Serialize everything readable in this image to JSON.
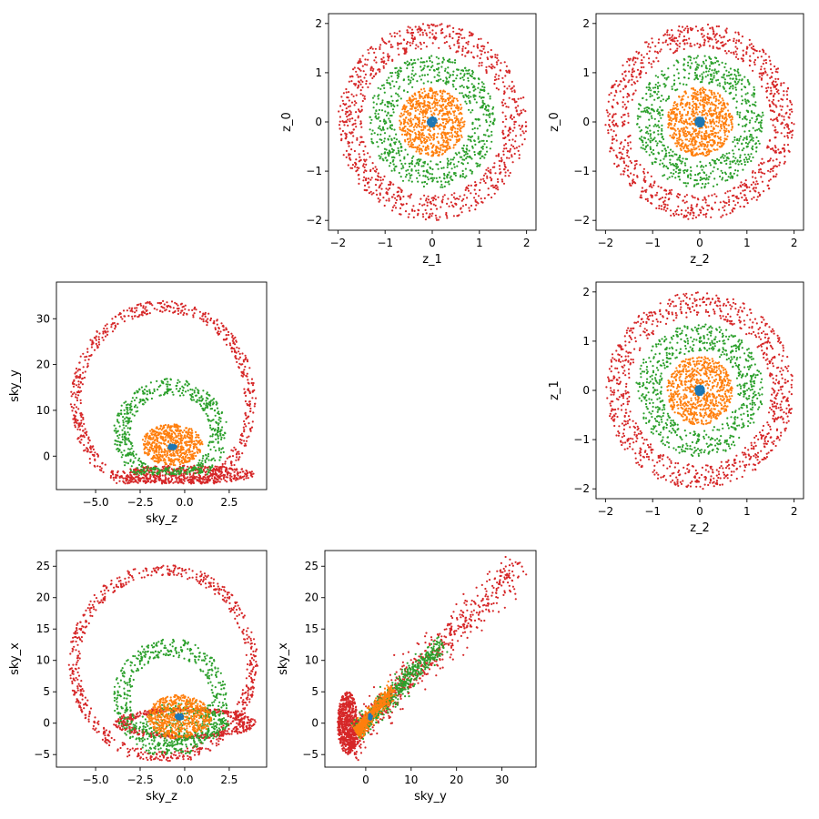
{
  "chart_data": [
    {
      "id": "z1_z0",
      "type": "scatter",
      "xlabel": "z_1",
      "ylabel": "z_0",
      "xlim": [
        -2.2,
        2.2
      ],
      "ylim": [
        -2.2,
        2.2
      ],
      "xticks": [
        -2,
        -1,
        0,
        1,
        2
      ],
      "yticks": [
        -2,
        -1,
        0,
        1,
        2
      ],
      "xticklabels": [
        "−2",
        "−1",
        "0",
        "1",
        "2"
      ],
      "yticklabels": [
        "−2",
        "−1",
        "0",
        "1",
        "2"
      ],
      "series": [
        {
          "color": "#d62728",
          "shape": "annulus",
          "cx": 0,
          "cy": 0,
          "r_inner": 1.5,
          "r_outer": 2.0,
          "count": 900
        },
        {
          "color": "#2ca02c",
          "shape": "annulus",
          "cx": 0,
          "cy": 0,
          "r_inner": 0.8,
          "r_outer": 1.35,
          "count": 700
        },
        {
          "color": "#ff7f0e",
          "shape": "annulus",
          "cx": 0,
          "cy": 0,
          "r_inner": 0.1,
          "r_outer": 0.7,
          "count": 700
        },
        {
          "color": "#1f77b4",
          "shape": "annulus",
          "cx": 0,
          "cy": 0,
          "r_inner": 0.0,
          "r_outer": 0.1,
          "count": 120
        }
      ]
    },
    {
      "id": "z2_z0",
      "type": "scatter",
      "xlabel": "z_2",
      "ylabel": "z_0",
      "xlim": [
        -2.2,
        2.2
      ],
      "ylim": [
        -2.2,
        2.2
      ],
      "xticks": [
        -2,
        -1,
        0,
        1,
        2
      ],
      "yticks": [
        -2,
        -1,
        0,
        1,
        2
      ],
      "xticklabels": [
        "−2",
        "−1",
        "0",
        "1",
        "2"
      ],
      "yticklabels": [
        "−2",
        "−1",
        "0",
        "1",
        "2"
      ],
      "series": [
        {
          "color": "#d62728",
          "shape": "annulus",
          "cx": 0,
          "cy": 0,
          "r_inner": 1.5,
          "r_outer": 2.0,
          "count": 900
        },
        {
          "color": "#2ca02c",
          "shape": "annulus",
          "cx": 0,
          "cy": 0,
          "r_inner": 0.8,
          "r_outer": 1.35,
          "count": 700
        },
        {
          "color": "#ff7f0e",
          "shape": "annulus",
          "cx": 0,
          "cy": 0,
          "r_inner": 0.1,
          "r_outer": 0.7,
          "count": 700
        },
        {
          "color": "#1f77b4",
          "shape": "annulus",
          "cx": 0,
          "cy": 0,
          "r_inner": 0.0,
          "r_outer": 0.1,
          "count": 120
        }
      ]
    },
    {
      "id": "z2_z1",
      "type": "scatter",
      "xlabel": "z_2",
      "ylabel": "z_1",
      "xlim": [
        -2.2,
        2.2
      ],
      "ylim": [
        -2.2,
        2.2
      ],
      "xticks": [
        -2,
        -1,
        0,
        1,
        2
      ],
      "yticks": [
        -2,
        -1,
        0,
        1,
        2
      ],
      "xticklabels": [
        "−2",
        "−1",
        "0",
        "1",
        "2"
      ],
      "yticklabels": [
        "−2",
        "−1",
        "0",
        "1",
        "2"
      ],
      "series": [
        {
          "color": "#d62728",
          "shape": "annulus",
          "cx": 0,
          "cy": 0,
          "r_inner": 1.5,
          "r_outer": 2.0,
          "count": 900
        },
        {
          "color": "#2ca02c",
          "shape": "annulus",
          "cx": 0,
          "cy": 0,
          "r_inner": 0.8,
          "r_outer": 1.35,
          "count": 700
        },
        {
          "color": "#ff7f0e",
          "shape": "annulus",
          "cx": 0,
          "cy": 0,
          "r_inner": 0.1,
          "r_outer": 0.7,
          "count": 700
        },
        {
          "color": "#1f77b4",
          "shape": "annulus",
          "cx": 0,
          "cy": 0,
          "r_inner": 0.0,
          "r_outer": 0.1,
          "count": 120
        }
      ]
    },
    {
      "id": "skyz_skyy",
      "type": "scatter",
      "xlabel": "sky_z",
      "ylabel": "sky_y",
      "xlim": [
        -7.2,
        4.6
      ],
      "ylim": [
        -7.3,
        38.0
      ],
      "xticks": [
        -5.0,
        -2.5,
        0.0,
        2.5
      ],
      "yticks": [
        0,
        10,
        20,
        30
      ],
      "xticklabels": [
        "−5.0",
        "−2.5",
        "0.0",
        "2.5"
      ],
      "yticklabels": [
        "0",
        "10",
        "20",
        "30"
      ],
      "series": [
        {
          "color": "#d62728",
          "shape": "shell",
          "cx": -1.2,
          "cy": 12,
          "rx": 5.2,
          "ry": 22,
          "clip_floor": -6.0,
          "count": 700,
          "band": [
            0.88,
            1.0
          ]
        },
        {
          "color": "#d62728",
          "shape": "ellipse",
          "cx": 0.0,
          "cy": -4.0,
          "rx": 4.0,
          "ry": 2.0,
          "count": 500
        },
        {
          "color": "#2ca02c",
          "shape": "shell",
          "cx": -0.8,
          "cy": 5.0,
          "rx": 3.2,
          "ry": 12.0,
          "clip_floor": -4.0,
          "count": 600,
          "band": [
            0.7,
            1.0
          ]
        },
        {
          "color": "#ff7f0e",
          "shape": "ellipse",
          "cx": -0.7,
          "cy": 2.5,
          "rx": 1.7,
          "ry": 4.5,
          "count": 600
        },
        {
          "color": "#1f77b4",
          "shape": "ellipse",
          "cx": -0.7,
          "cy": 2.0,
          "rx": 0.25,
          "ry": 0.6,
          "count": 60
        }
      ]
    },
    {
      "id": "skyz_skyx",
      "type": "scatter",
      "xlabel": "sky_z",
      "ylabel": "sky_x",
      "xlim": [
        -7.2,
        4.6
      ],
      "ylim": [
        -7.0,
        27.5
      ],
      "xticks": [
        -5.0,
        -2.5,
        0.0,
        2.5
      ],
      "yticks": [
        -5,
        0,
        5,
        10,
        15,
        20,
        25
      ],
      "xticklabels": [
        "−5.0",
        "−2.5",
        "0.0",
        "2.5"
      ],
      "yticklabels": [
        "−5",
        "0",
        "5",
        "10",
        "15",
        "20",
        "25"
      ],
      "series": [
        {
          "color": "#d62728",
          "shape": "shell",
          "cx": -1.2,
          "cy": 9.5,
          "rx": 5.3,
          "ry": 16.0,
          "clip_floor": -6.0,
          "count": 700,
          "band": [
            0.88,
            1.0
          ]
        },
        {
          "color": "#d62728",
          "shape": "annulus_e",
          "cx": 0.0,
          "cy": 0.0,
          "rx": 4.0,
          "ry": 5.0,
          "band": [
            0.75,
            1.0
          ],
          "count": 500
        },
        {
          "color": "#2ca02c",
          "shape": "shell",
          "cx": -0.8,
          "cy": 4.0,
          "rx": 3.2,
          "ry": 9.5,
          "clip_floor": -5.0,
          "count": 550,
          "band": [
            0.7,
            1.0
          ]
        },
        {
          "color": "#2ca02c",
          "shape": "ellipse",
          "cx": 0.0,
          "cy": 0.0,
          "rx": 2.5,
          "ry": 3.5,
          "count": 300
        },
        {
          "color": "#ff7f0e",
          "shape": "ellipse",
          "cx": -0.3,
          "cy": 1.0,
          "rx": 1.8,
          "ry": 3.5,
          "count": 600
        },
        {
          "color": "#1f77b4",
          "shape": "ellipse",
          "cx": -0.3,
          "cy": 1.0,
          "rx": 0.25,
          "ry": 0.5,
          "count": 60
        }
      ]
    },
    {
      "id": "skyy_skyx",
      "type": "scatter",
      "xlabel": "sky_y",
      "ylabel": "sky_x",
      "xlim": [
        -9.0,
        37.5
      ],
      "ylim": [
        -7.0,
        27.5
      ],
      "xticks": [
        0,
        10,
        20,
        30
      ],
      "yticks": [
        -5,
        0,
        5,
        10,
        15,
        20,
        25
      ],
      "xticklabels": [
        "0",
        "10",
        "20",
        "30"
      ],
      "yticklabels": [
        "−5",
        "0",
        "5",
        "10",
        "15",
        "20",
        "25"
      ],
      "series": [
        {
          "color": "#d62728",
          "shape": "band",
          "x0": -4.0,
          "y0": -3.0,
          "x1": 34.0,
          "y1": 25.5,
          "width": 2.8,
          "count": 700
        },
        {
          "color": "#d62728",
          "shape": "ellipse",
          "cx": -4.0,
          "cy": 0.0,
          "rx": 2.2,
          "ry": 5.0,
          "count": 600
        },
        {
          "color": "#2ca02c",
          "shape": "band",
          "x0": -2.0,
          "y0": -1.5,
          "x1": 17.0,
          "y1": 13.0,
          "width": 1.6,
          "count": 600
        },
        {
          "color": "#ff7f0e",
          "shape": "band",
          "x0": -2.0,
          "y0": -1.5,
          "x1": 6.0,
          "y1": 5.5,
          "width": 1.2,
          "count": 500
        },
        {
          "color": "#1f77b4",
          "shape": "ellipse",
          "cx": 1.0,
          "cy": 1.0,
          "rx": 0.4,
          "ry": 0.5,
          "count": 50
        }
      ]
    }
  ]
}
